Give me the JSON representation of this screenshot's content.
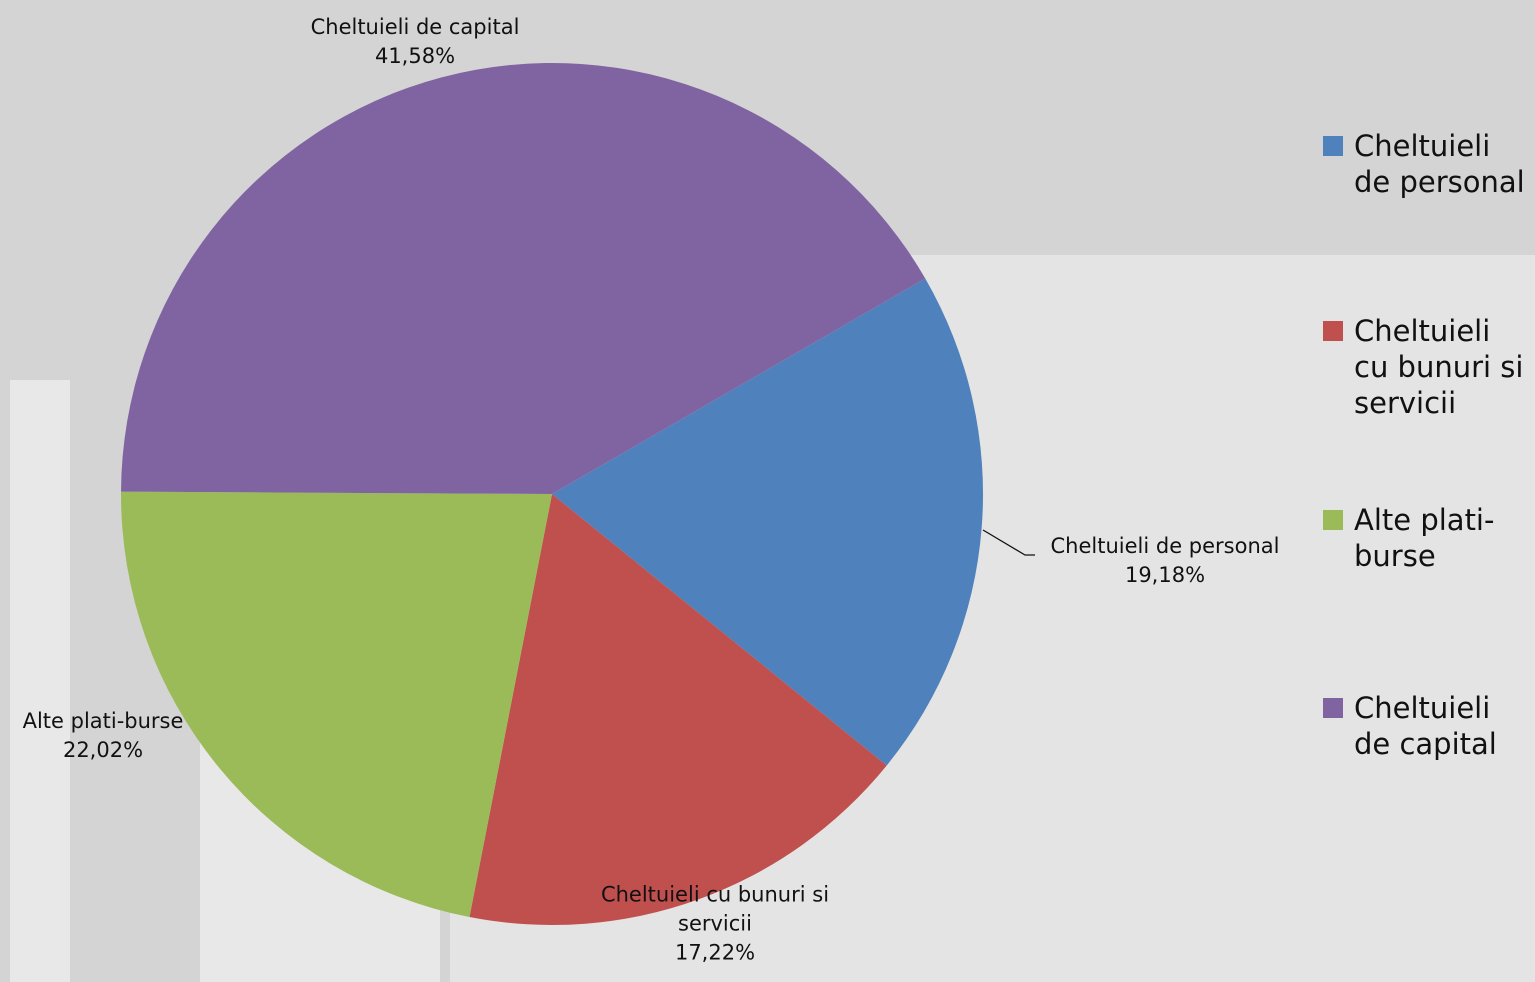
{
  "chart_data": {
    "type": "pie",
    "categories": [
      "Cheltuieli de personal",
      "Cheltuieli cu bunuri si servicii",
      "Alte plati-burse",
      "Cheltuieli de capital"
    ],
    "values": [
      19.18,
      17.22,
      22.02,
      41.58
    ],
    "value_labels": [
      "19,18%",
      "17,22%",
      "22,02%",
      "41,58%"
    ],
    "colors": [
      "#4f81bd",
      "#c0504d",
      "#9bbb59",
      "#8064a2"
    ],
    "legend": "right"
  }
}
